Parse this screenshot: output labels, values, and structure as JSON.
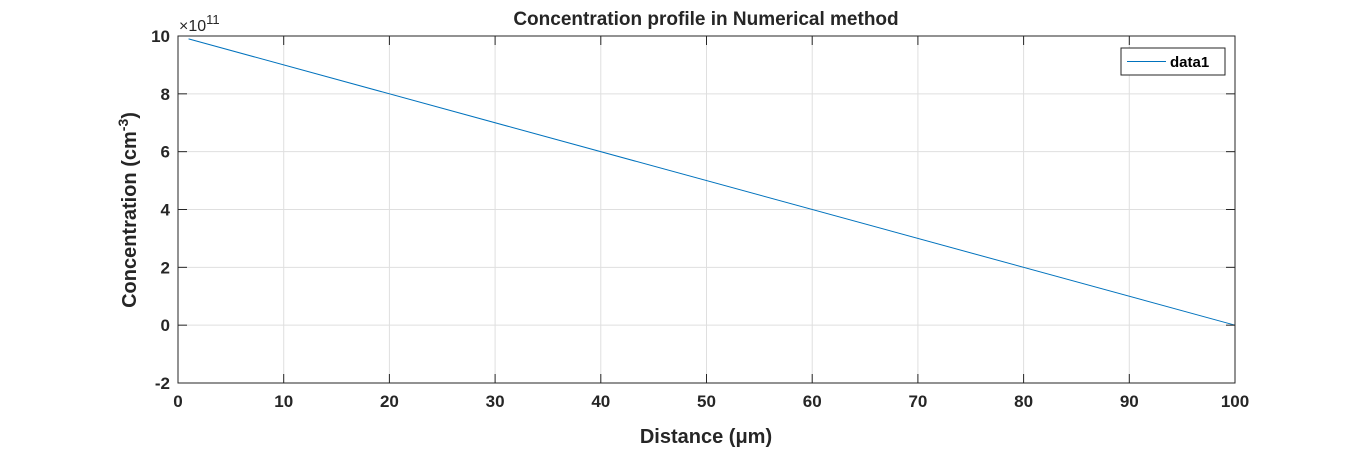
{
  "chart_data": {
    "type": "line",
    "title": "Concentration profile in Numerical method",
    "xlabel": "Distance (μm)",
    "ylabel_main": "Concentration (cm",
    "ylabel_sup": "-3",
    "ylabel_end": ")",
    "y_exponent_prefix": "×10",
    "y_exponent_power": "11",
    "xlim": [
      0,
      100
    ],
    "ylim": [
      -2,
      10
    ],
    "x_ticks": [
      0,
      10,
      20,
      30,
      40,
      50,
      60,
      70,
      80,
      90,
      100
    ],
    "y_ticks": [
      -2,
      0,
      2,
      4,
      6,
      8,
      10
    ],
    "x_tick_labels": [
      "0",
      "10",
      "20",
      "30",
      "40",
      "50",
      "60",
      "70",
      "80",
      "90",
      "100"
    ],
    "y_tick_labels": [
      "-2",
      "0",
      "2",
      "4",
      "6",
      "8",
      "10"
    ],
    "grid": true,
    "legend_position": "top-right",
    "series": [
      {
        "name": "data1",
        "color": "#0072bd",
        "x": [
          1,
          100
        ],
        "y": [
          9.9,
          0
        ]
      }
    ]
  }
}
